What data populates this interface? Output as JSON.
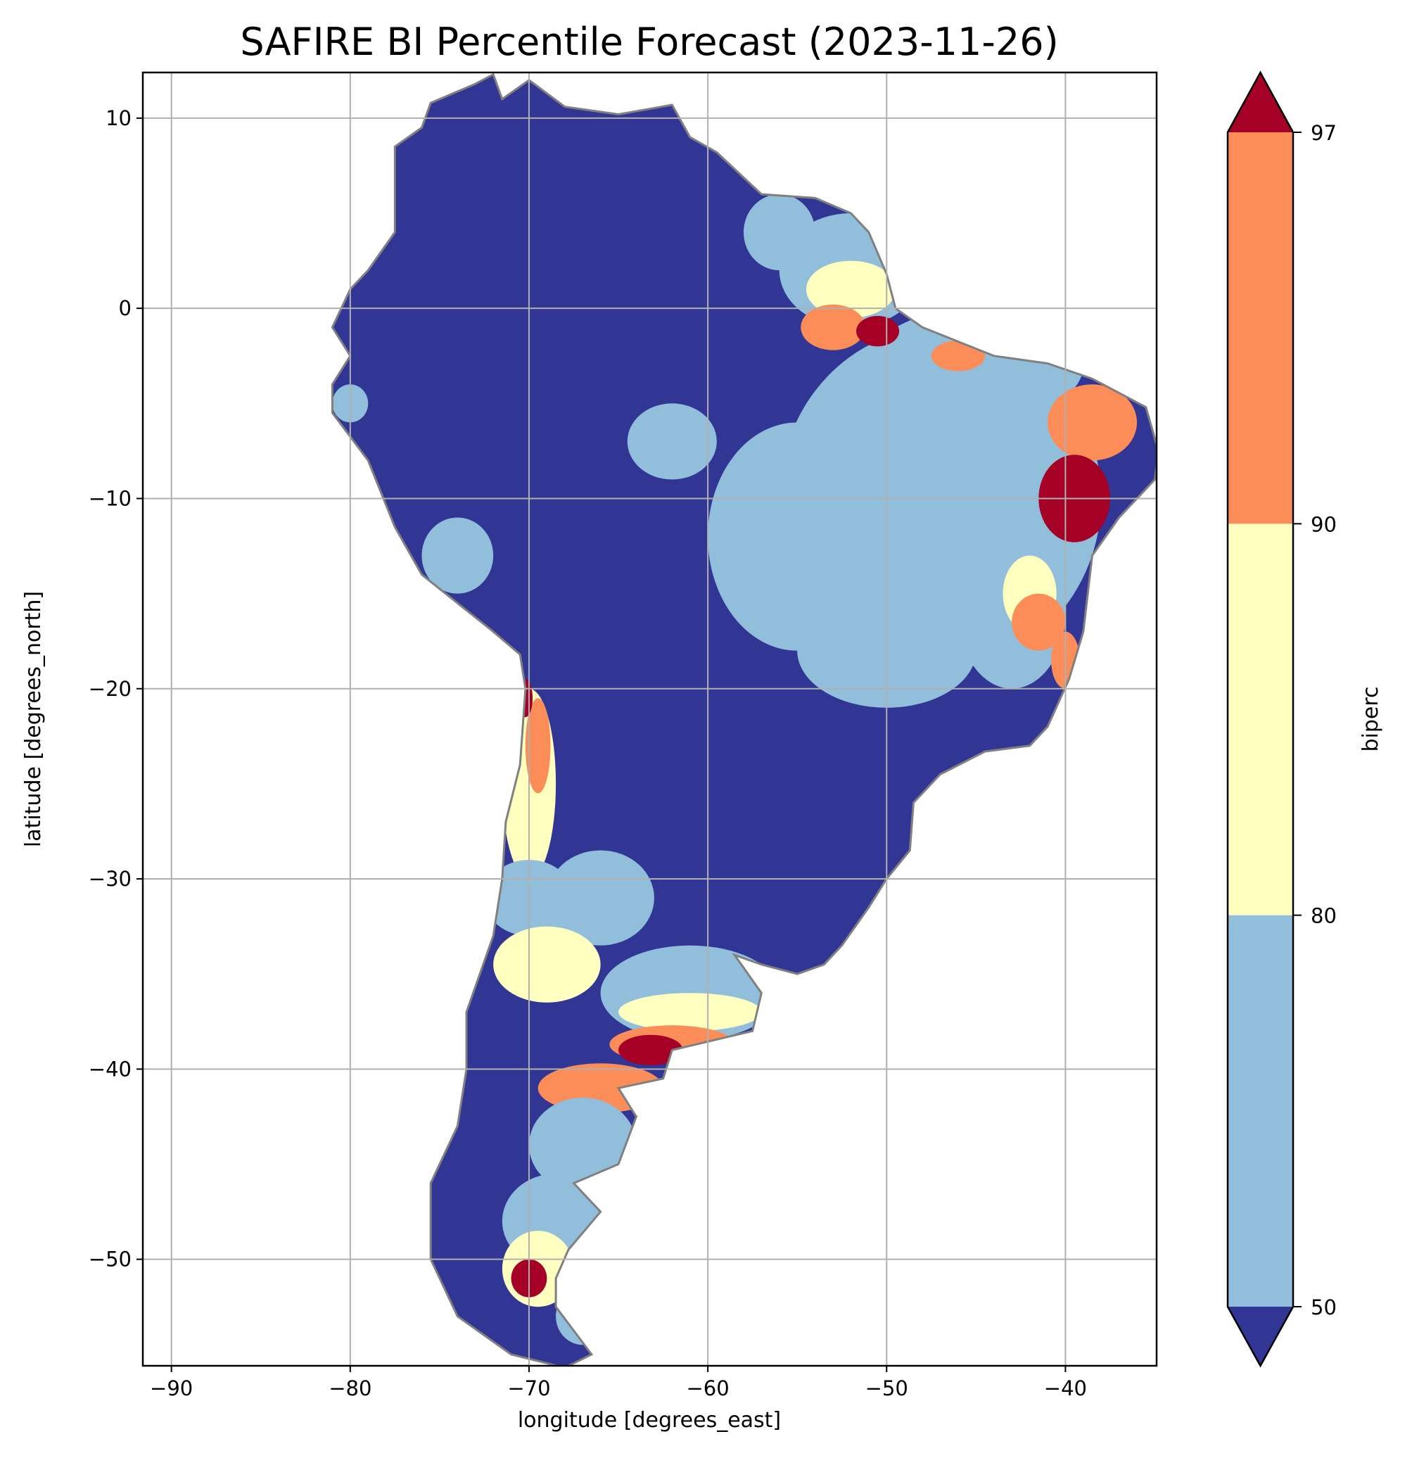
{
  "chart_data": {
    "type": "heatmap",
    "title": "SAFIRE BI Percentile Forecast (2023-11-26)",
    "xlabel": "longitude [degrees_east]",
    "ylabel": "latitude [degrees_north]",
    "xlim": [
      -91.6,
      -34.9
    ],
    "ylim": [
      -55.6,
      12.4
    ],
    "xticks": [
      -90,
      -80,
      -70,
      -60,
      -50,
      -40
    ],
    "xtick_labels": [
      "−90",
      "−80",
      "−70",
      "−60",
      "−50",
      "−40"
    ],
    "yticks": [
      10,
      0,
      -10,
      -20,
      -30,
      -40,
      -50
    ],
    "ytick_labels": [
      "10",
      "0",
      "−10",
      "−20",
      "−30",
      "−40",
      "−50"
    ],
    "grid": true,
    "colorbar": {
      "label": "biperc",
      "levels": [
        50,
        80,
        90,
        97
      ],
      "tick_labels": [
        "50",
        "80",
        "90",
        "97"
      ],
      "extend": "both",
      "colors": {
        "below_50": "#313695",
        "50_80": "#91bfdb",
        "80_90": "#ffffbf",
        "90_97": "#fc8d59",
        "above_97": "#a50026"
      }
    },
    "region": "South America",
    "border_color": "#808080"
  }
}
